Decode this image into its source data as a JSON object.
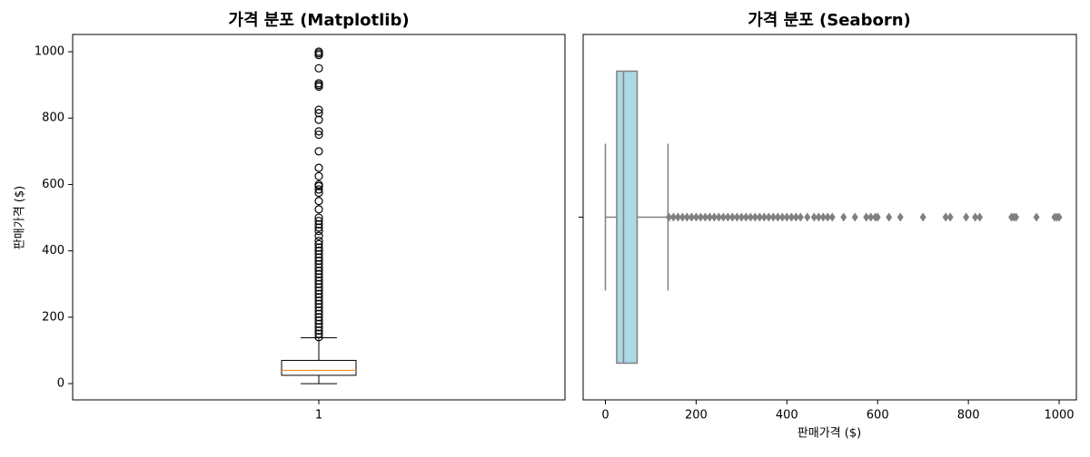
{
  "chart_data": [
    {
      "type": "box",
      "orientation": "vertical",
      "title": "가격 분포 (Matplotlib)",
      "ylabel": "판매가격 ($)",
      "categories": [
        "1"
      ],
      "ylim": [
        -49,
        1052
      ],
      "yticks": [
        0,
        200,
        400,
        600,
        800,
        1000
      ],
      "edge_color": "#000000",
      "median_color": "#ff7f0e",
      "fill": "none",
      "stats": {
        "whislo": 0,
        "q1": 25,
        "med": 40,
        "q3": 70,
        "whishi": 138,
        "fliers": [
          140,
          150,
          160,
          170,
          180,
          190,
          200,
          210,
          220,
          230,
          240,
          250,
          260,
          270,
          280,
          290,
          300,
          310,
          320,
          330,
          340,
          350,
          360,
          370,
          380,
          390,
          400,
          410,
          420,
          430,
          445,
          460,
          470,
          480,
          490,
          500,
          525,
          550,
          575,
          585,
          595,
          600,
          625,
          650,
          700,
          750,
          760,
          795,
          815,
          825,
          895,
          900,
          905,
          950,
          990,
          995,
          1000
        ]
      }
    },
    {
      "type": "box",
      "orientation": "horizontal",
      "title": "가격 분포 (Seaborn)",
      "xlabel": "판매가격 ($)",
      "categories": [
        null
      ],
      "xlim": [
        -49,
        1038
      ],
      "xticks": [
        0,
        200,
        400,
        600,
        800,
        1000
      ],
      "edge_color": "#808080",
      "median_color": "#808080",
      "fill": "#add8e6",
      "stats": {
        "whislo": 0,
        "q1": 25,
        "med": 40,
        "q3": 70,
        "whishi": 138,
        "fliers": [
          140,
          150,
          160,
          170,
          180,
          190,
          200,
          210,
          220,
          230,
          240,
          250,
          260,
          270,
          280,
          290,
          300,
          310,
          320,
          330,
          340,
          350,
          360,
          370,
          380,
          390,
          400,
          410,
          420,
          430,
          445,
          460,
          470,
          480,
          490,
          500,
          525,
          550,
          575,
          585,
          595,
          600,
          625,
          650,
          700,
          750,
          760,
          795,
          815,
          825,
          895,
          900,
          905,
          950,
          990,
          995,
          1000
        ]
      }
    }
  ]
}
